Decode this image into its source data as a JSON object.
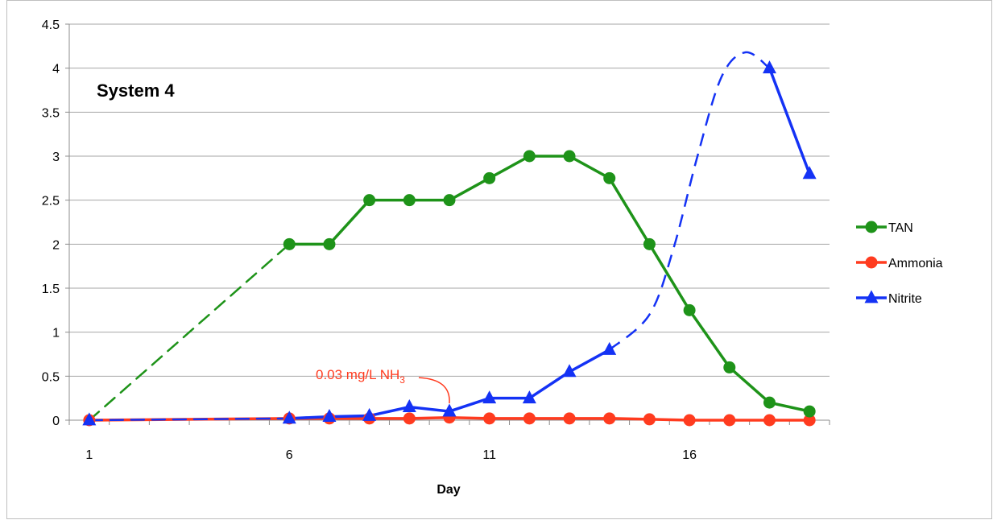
{
  "chart_data": {
    "type": "line",
    "title": "System 4",
    "xlabel": "Day",
    "ylabel": "",
    "xlim": [
      1,
      19
    ],
    "ylim": [
      0,
      4.5
    ],
    "x_ticks": [
      1,
      6,
      11,
      16
    ],
    "y_ticks": [
      0,
      0.5,
      1,
      1.5,
      2,
      2.5,
      3,
      3.5,
      4,
      4.5
    ],
    "grid": "horizontal",
    "legend_position": "right",
    "series": [
      {
        "name": "TAN",
        "color": "#1e9319",
        "marker": "circle",
        "points": [
          [
            1,
            0.0
          ],
          [
            6,
            2.0
          ],
          [
            7,
            2.0
          ],
          [
            8,
            2.5
          ],
          [
            9,
            2.5
          ],
          [
            10,
            2.5
          ],
          [
            11,
            2.75
          ],
          [
            12,
            3.0
          ],
          [
            13,
            3.0
          ],
          [
            14,
            2.75
          ],
          [
            15,
            2.0
          ],
          [
            16,
            1.25
          ],
          [
            17,
            0.6
          ],
          [
            18,
            0.2
          ],
          [
            19,
            0.1
          ]
        ],
        "dashed_segments": [
          [
            1,
            6
          ]
        ]
      },
      {
        "name": "Ammonia",
        "color": "#ff3b1f",
        "marker": "circle",
        "points": [
          [
            1,
            0.0
          ],
          [
            6,
            0.02
          ],
          [
            7,
            0.02
          ],
          [
            8,
            0.02
          ],
          [
            9,
            0.02
          ],
          [
            10,
            0.03
          ],
          [
            11,
            0.02
          ],
          [
            12,
            0.02
          ],
          [
            13,
            0.02
          ],
          [
            14,
            0.02
          ],
          [
            15,
            0.01
          ],
          [
            16,
            0.0
          ],
          [
            17,
            0.0
          ],
          [
            18,
            0.0
          ],
          [
            19,
            0.0
          ]
        ],
        "dashed_segments": []
      },
      {
        "name": "Nitrite",
        "color": "#1432f5",
        "marker": "triangle",
        "points": [
          [
            1,
            0.0
          ],
          [
            6,
            0.02
          ],
          [
            7,
            0.04
          ],
          [
            8,
            0.05
          ],
          [
            9,
            0.15
          ],
          [
            10,
            0.1
          ],
          [
            11,
            0.25
          ],
          [
            12,
            0.25
          ],
          [
            13,
            0.55
          ],
          [
            14,
            0.8
          ],
          [
            18,
            4.0
          ],
          [
            19,
            2.8
          ]
        ],
        "dashed_segments": [
          [
            1,
            6
          ],
          [
            14,
            18
          ]
        ],
        "dashed_curve": [
          [
            14,
            0.8
          ],
          [
            15,
            1.2
          ],
          [
            15.6,
            1.95
          ],
          [
            16.2,
            3.0
          ],
          [
            16.8,
            3.9
          ],
          [
            17.4,
            4.18
          ],
          [
            18,
            4.0
          ]
        ]
      }
    ],
    "annotations": [
      {
        "text": "0.03 mg/L NH",
        "subscript": "3",
        "color": "#ff3b1f",
        "anchor": [
          10,
          0.1
        ]
      }
    ]
  }
}
